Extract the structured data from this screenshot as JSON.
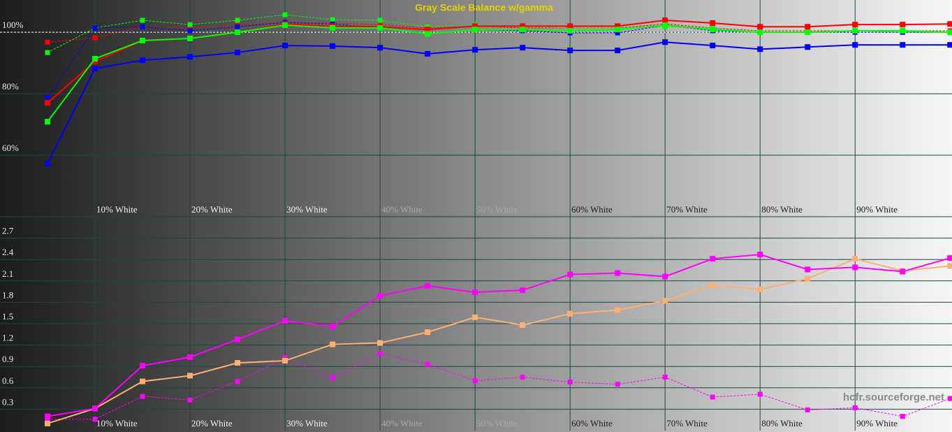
{
  "chart_data": [
    {
      "type": "line",
      "title": "Gray Scale Balance w/gamma",
      "x": [
        5,
        10,
        15,
        20,
        25,
        30,
        35,
        40,
        45,
        50,
        55,
        60,
        65,
        70,
        75,
        80,
        85,
        90,
        95,
        100
      ],
      "xlim": [
        0,
        100.2
      ],
      "ylim": [
        40,
        110.5
      ],
      "xticks": [
        {
          "value": 10,
          "label": "10% White"
        },
        {
          "value": 20,
          "label": "20% White"
        },
        {
          "value": 30,
          "label": "30% White"
        },
        {
          "value": 40,
          "label": "40% White"
        },
        {
          "value": 50,
          "label": "50% White"
        },
        {
          "value": 60,
          "label": "60% White"
        },
        {
          "value": 70,
          "label": "70% White"
        },
        {
          "value": 80,
          "label": "80% White"
        },
        {
          "value": 90,
          "label": "90% White"
        }
      ],
      "yticks": [
        {
          "value": 60,
          "label": "60%"
        },
        {
          "value": 80,
          "label": "80%"
        },
        {
          "value": 100,
          "label": "100%"
        }
      ],
      "reference_line": 100,
      "series": [
        {
          "color": "#ff0000",
          "dashed": true,
          "values": [
            96.8,
            98.2,
            101.8,
            101.4,
            102.3,
            103.2,
            103.0,
            102.5,
            101.4,
            102.0,
            101.4,
            101.4,
            101.4,
            102.7,
            101.4,
            100.5,
            100.5,
            100.5,
            100.5,
            100.5
          ]
        },
        {
          "color": "#00ff00",
          "dashed": true,
          "values": [
            93.4,
            101.4,
            103.9,
            102.5,
            103.9,
            105.7,
            104.1,
            103.9,
            101.8,
            102.5,
            101.8,
            101.4,
            101.4,
            101.8,
            101.4,
            100.0,
            100.0,
            100.5,
            100.0,
            100.0
          ]
        },
        {
          "color": "#0000ff",
          "dashed": true,
          "values": [
            78.9,
            101.4,
            101.8,
            100.5,
            101.8,
            103.2,
            102.7,
            101.4,
            99.5,
            100.9,
            100.5,
            99.8,
            99.8,
            102.3,
            100.5,
            100.0,
            100.0,
            100.0,
            100.0,
            100.0
          ]
        },
        {
          "color": "#ff0000",
          "dashed": false,
          "values": [
            77.0,
            90.5,
            97.3,
            98.0,
            100.0,
            102.7,
            102.0,
            101.8,
            100.9,
            102.0,
            102.0,
            102.0,
            102.0,
            103.9,
            103.0,
            101.8,
            101.8,
            102.5,
            102.5,
            102.7
          ]
        },
        {
          "color": "#00ff00",
          "dashed": false,
          "values": [
            70.9,
            91.4,
            97.3,
            98.0,
            100.0,
            102.3,
            101.4,
            101.4,
            99.5,
            100.9,
            100.9,
            100.5,
            100.9,
            102.3,
            100.9,
            100.0,
            100.0,
            100.5,
            100.5,
            100.0
          ]
        },
        {
          "color": "#0000ff",
          "dashed": false,
          "values": [
            57.3,
            88.2,
            90.9,
            92.0,
            93.4,
            95.7,
            95.5,
            95.0,
            93.0,
            94.3,
            95.0,
            94.1,
            94.1,
            96.8,
            95.7,
            94.5,
            95.2,
            95.9,
            95.9,
            95.9
          ]
        }
      ]
    },
    {
      "type": "line",
      "x": [
        5,
        10,
        15,
        20,
        25,
        30,
        35,
        40,
        45,
        50,
        55,
        60,
        65,
        70,
        75,
        80,
        85,
        90,
        95,
        100
      ],
      "xlim": [
        0,
        100.2
      ],
      "ylim": [
        0,
        3.0
      ],
      "xticks": [
        {
          "value": 10,
          "label": "10% White"
        },
        {
          "value": 20,
          "label": "20% White"
        },
        {
          "value": 30,
          "label": "30% White"
        },
        {
          "value": 40,
          "label": "40% White"
        },
        {
          "value": 50,
          "label": "50% White"
        },
        {
          "value": 60,
          "label": "60% White"
        },
        {
          "value": 70,
          "label": "70% White"
        },
        {
          "value": 80,
          "label": "80% White"
        },
        {
          "value": 90,
          "label": "90% White"
        }
      ],
      "yticks": [
        0.3,
        0.6,
        0.9,
        1.2,
        1.5,
        1.8,
        2.1,
        2.4,
        2.7
      ],
      "annotation": "hcfr.sourceforge.net",
      "series": [
        {
          "color": "#ff00ff",
          "dashed": true,
          "values": [
            0.16,
            0.16,
            0.48,
            0.43,
            0.69,
            1.02,
            0.74,
            1.08,
            0.93,
            0.7,
            0.75,
            0.68,
            0.65,
            0.75,
            0.47,
            0.51,
            0.29,
            0.32,
            0.2,
            0.45
          ]
        },
        {
          "color": "#ffb070",
          "dashed": false,
          "values": [
            0.1,
            0.31,
            0.69,
            0.77,
            0.95,
            0.98,
            1.21,
            1.23,
            1.38,
            1.59,
            1.48,
            1.64,
            1.69,
            1.82,
            2.04,
            1.98,
            2.13,
            2.41,
            2.24,
            2.31
          ]
        },
        {
          "color": "#ff00ff",
          "dashed": false,
          "values": [
            0.2,
            0.31,
            0.91,
            1.03,
            1.28,
            1.54,
            1.46,
            1.89,
            2.03,
            1.94,
            1.97,
            2.19,
            2.21,
            2.16,
            2.41,
            2.47,
            2.26,
            2.29,
            2.23,
            2.42
          ]
        }
      ]
    }
  ]
}
